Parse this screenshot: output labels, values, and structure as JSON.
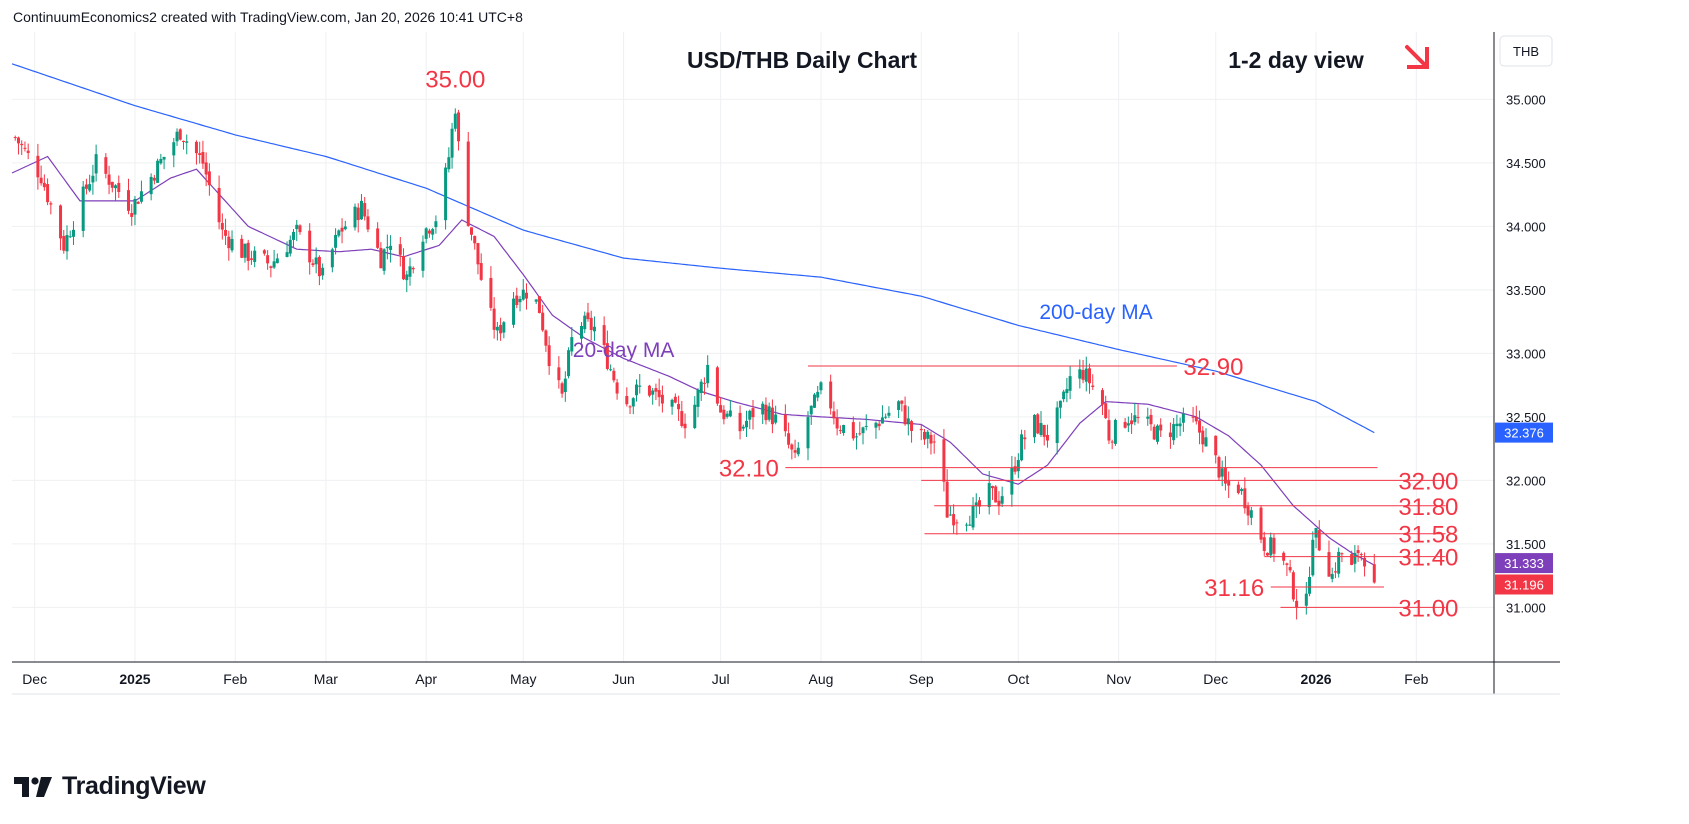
{
  "header": {
    "attribution": "ContinuumEconomics2 created with TradingView.com, Jan 20, 2026 10:41 UTC+8"
  },
  "branding": {
    "name": "TradingView",
    "icon": "tradingview-logo-icon"
  },
  "colors": {
    "up": "#089981",
    "down": "#f23645",
    "ma20": "#7e3fba",
    "ma200": "#2962ff",
    "level": "#f23645",
    "grid": "#eef0f3",
    "text": "#131722",
    "price_tag_ma200": "#2962ff",
    "price_tag_ma20": "#7e3fba",
    "price_tag_last": "#f23645"
  },
  "chart_data": {
    "type": "candlestick",
    "title": "USD/THB Daily Chart",
    "subtitle": "1-2 day view",
    "view_direction_icon": "arrow-down-right-icon",
    "currency": "THB",
    "ylim": [
      30.57,
      35.53
    ],
    "y_ticks": [
      "35.000",
      "34.500",
      "34.000",
      "33.500",
      "33.000",
      "32.500",
      "32.000",
      "31.500",
      "31.000"
    ],
    "x_ticks": [
      {
        "label": "Dec",
        "date": "2024-12-01"
      },
      {
        "label": "2025",
        "date": "2025-01-01"
      },
      {
        "label": "Feb",
        "date": "2025-02-01"
      },
      {
        "label": "Mar",
        "date": "2025-03-01"
      },
      {
        "label": "Apr",
        "date": "2025-04-01"
      },
      {
        "label": "May",
        "date": "2025-05-01"
      },
      {
        "label": "Jun",
        "date": "2025-06-01"
      },
      {
        "label": "Jul",
        "date": "2025-07-01"
      },
      {
        "label": "Aug",
        "date": "2025-08-01"
      },
      {
        "label": "Sep",
        "date": "2025-09-01"
      },
      {
        "label": "Oct",
        "date": "2025-10-01"
      },
      {
        "label": "Nov",
        "date": "2025-11-01"
      },
      {
        "label": "Dec",
        "date": "2025-12-01"
      },
      {
        "label": "2026",
        "date": "2026-01-01"
      },
      {
        "label": "Feb",
        "date": "2026-02-01"
      }
    ],
    "xlim": [
      "2024-11-24",
      "2026-02-25"
    ],
    "path_key_points": [
      {
        "date": "2024-11-25",
        "close": 34.7
      },
      {
        "date": "2024-12-03",
        "close": 34.4
      },
      {
        "date": "2024-12-10",
        "close": 33.85
      },
      {
        "date": "2024-12-20",
        "close": 34.5
      },
      {
        "date": "2024-12-31",
        "close": 34.15
      },
      {
        "date": "2025-01-10",
        "close": 34.55
      },
      {
        "date": "2025-01-15",
        "close": 34.75
      },
      {
        "date": "2025-01-22",
        "close": 34.5
      },
      {
        "date": "2025-01-28",
        "close": 33.95
      },
      {
        "date": "2025-02-03",
        "close": 33.8
      },
      {
        "date": "2025-02-12",
        "close": 33.7
      },
      {
        "date": "2025-02-20",
        "close": 33.95
      },
      {
        "date": "2025-02-28",
        "close": 33.6
      },
      {
        "date": "2025-03-05",
        "close": 33.95
      },
      {
        "date": "2025-03-12",
        "close": 34.15
      },
      {
        "date": "2025-03-18",
        "close": 33.75
      },
      {
        "date": "2025-03-21",
        "close": 33.9
      },
      {
        "date": "2025-03-26",
        "close": 33.6
      },
      {
        "date": "2025-03-31",
        "close": 33.95
      },
      {
        "date": "2025-04-05",
        "close": 34.1
      },
      {
        "date": "2025-04-08",
        "close": 34.55
      },
      {
        "date": "2025-04-10",
        "close": 34.95
      },
      {
        "date": "2025-04-12",
        "close": 34.3
      },
      {
        "date": "2025-04-15",
        "close": 33.95
      },
      {
        "date": "2025-04-20",
        "close": 33.35
      },
      {
        "date": "2025-04-23",
        "close": 33.15
      },
      {
        "date": "2025-04-28",
        "close": 33.45
      },
      {
        "date": "2025-05-03",
        "close": 33.5
      },
      {
        "date": "2025-05-06",
        "close": 33.35
      },
      {
        "date": "2025-05-10",
        "close": 32.85
      },
      {
        "date": "2025-05-13",
        "close": 32.65
      },
      {
        "date": "2025-05-17",
        "close": 33.25
      },
      {
        "date": "2025-05-23",
        "close": 33.2
      },
      {
        "date": "2025-05-27",
        "close": 32.95
      },
      {
        "date": "2025-06-01",
        "close": 32.6
      },
      {
        "date": "2025-06-07",
        "close": 32.75
      },
      {
        "date": "2025-06-14",
        "close": 32.6
      },
      {
        "date": "2025-06-21",
        "close": 32.45
      },
      {
        "date": "2025-06-27",
        "close": 32.9
      },
      {
        "date": "2025-07-01",
        "close": 32.55
      },
      {
        "date": "2025-07-07",
        "close": 32.4
      },
      {
        "date": "2025-07-13",
        "close": 32.6
      },
      {
        "date": "2025-07-19",
        "close": 32.45
      },
      {
        "date": "2025-07-24",
        "close": 32.15
      },
      {
        "date": "2025-07-28",
        "close": 32.5
      },
      {
        "date": "2025-08-02",
        "close": 32.75
      },
      {
        "date": "2025-08-06",
        "close": 32.45
      },
      {
        "date": "2025-08-12",
        "close": 32.35
      },
      {
        "date": "2025-08-18",
        "close": 32.45
      },
      {
        "date": "2025-08-25",
        "close": 32.6
      },
      {
        "date": "2025-08-30",
        "close": 32.35
      },
      {
        "date": "2025-09-06",
        "close": 32.3
      },
      {
        "date": "2025-09-09",
        "close": 31.75
      },
      {
        "date": "2025-09-13",
        "close": 31.7
      },
      {
        "date": "2025-09-18",
        "close": 31.75
      },
      {
        "date": "2025-09-22",
        "close": 31.9
      },
      {
        "date": "2025-09-25",
        "close": 31.85
      },
      {
        "date": "2025-09-29",
        "close": 32.05
      },
      {
        "date": "2025-10-02",
        "close": 32.3
      },
      {
        "date": "2025-10-06",
        "close": 32.45
      },
      {
        "date": "2025-10-10",
        "close": 32.35
      },
      {
        "date": "2025-10-14",
        "close": 32.55
      },
      {
        "date": "2025-10-17",
        "close": 32.8
      },
      {
        "date": "2025-10-21",
        "close": 32.85
      },
      {
        "date": "2025-10-23",
        "close": 32.78
      },
      {
        "date": "2025-10-27",
        "close": 32.6
      },
      {
        "date": "2025-10-29",
        "close": 32.35
      },
      {
        "date": "2025-11-04",
        "close": 32.5
      },
      {
        "date": "2025-11-09",
        "close": 32.45
      },
      {
        "date": "2025-11-14",
        "close": 32.35
      },
      {
        "date": "2025-11-20",
        "close": 32.45
      },
      {
        "date": "2025-11-24",
        "close": 32.45
      },
      {
        "date": "2025-11-27",
        "close": 32.35
      },
      {
        "date": "2025-12-01",
        "close": 32.15
      },
      {
        "date": "2025-12-04",
        "close": 31.95
      },
      {
        "date": "2025-12-08",
        "close": 31.95
      },
      {
        "date": "2025-12-12",
        "close": 31.75
      },
      {
        "date": "2025-12-16",
        "close": 31.5
      },
      {
        "date": "2025-12-20",
        "close": 31.45
      },
      {
        "date": "2025-12-23",
        "close": 31.3
      },
      {
        "date": "2025-12-26",
        "close": 31.05
      },
      {
        "date": "2025-12-29",
        "close": 31.03
      },
      {
        "date": "2025-12-31",
        "close": 31.6
      },
      {
        "date": "2026-01-03",
        "close": 31.45
      },
      {
        "date": "2026-01-06",
        "close": 31.25
      },
      {
        "date": "2026-01-08",
        "close": 31.4
      },
      {
        "date": "2026-01-10",
        "close": 31.45
      },
      {
        "date": "2026-01-12",
        "close": 31.3
      },
      {
        "date": "2026-01-14",
        "close": 31.45
      },
      {
        "date": "2026-01-16",
        "close": 31.4
      },
      {
        "date": "2026-01-19",
        "close": 31.196
      }
    ],
    "ma20_key_points": [
      {
        "date": "2024-11-24",
        "value": 34.42
      },
      {
        "date": "2024-12-05",
        "value": 34.55
      },
      {
        "date": "2024-12-15",
        "value": 34.2
      },
      {
        "date": "2025-01-01",
        "value": 34.2
      },
      {
        "date": "2025-01-12",
        "value": 34.38
      },
      {
        "date": "2025-01-20",
        "value": 34.45
      },
      {
        "date": "2025-02-05",
        "value": 34.0
      },
      {
        "date": "2025-02-20",
        "value": 33.82
      },
      {
        "date": "2025-03-05",
        "value": 33.8
      },
      {
        "date": "2025-03-15",
        "value": 33.82
      },
      {
        "date": "2025-03-25",
        "value": 33.76
      },
      {
        "date": "2025-04-05",
        "value": 33.85
      },
      {
        "date": "2025-04-12",
        "value": 34.05
      },
      {
        "date": "2025-04-22",
        "value": 33.92
      },
      {
        "date": "2025-05-01",
        "value": 33.62
      },
      {
        "date": "2025-05-10",
        "value": 33.3
      },
      {
        "date": "2025-05-20",
        "value": 33.12
      },
      {
        "date": "2025-06-01",
        "value": 32.96
      },
      {
        "date": "2025-06-15",
        "value": 32.82
      },
      {
        "date": "2025-06-25",
        "value": 32.7
      },
      {
        "date": "2025-07-05",
        "value": 32.62
      },
      {
        "date": "2025-07-20",
        "value": 32.52
      },
      {
        "date": "2025-08-01",
        "value": 32.5
      },
      {
        "date": "2025-08-15",
        "value": 32.48
      },
      {
        "date": "2025-09-01",
        "value": 32.44
      },
      {
        "date": "2025-09-10",
        "value": 32.3
      },
      {
        "date": "2025-09-20",
        "value": 32.05
      },
      {
        "date": "2025-10-01",
        "value": 31.97
      },
      {
        "date": "2025-10-10",
        "value": 32.12
      },
      {
        "date": "2025-10-20",
        "value": 32.45
      },
      {
        "date": "2025-10-28",
        "value": 32.62
      },
      {
        "date": "2025-11-10",
        "value": 32.6
      },
      {
        "date": "2025-11-25",
        "value": 32.5
      },
      {
        "date": "2025-12-05",
        "value": 32.35
      },
      {
        "date": "2025-12-15",
        "value": 32.12
      },
      {
        "date": "2025-12-25",
        "value": 31.8
      },
      {
        "date": "2026-01-05",
        "value": 31.55
      },
      {
        "date": "2026-01-12",
        "value": 31.43
      },
      {
        "date": "2026-01-19",
        "value": 31.333
      }
    ],
    "ma200_key_points": [
      {
        "date": "2024-11-24",
        "value": 35.28
      },
      {
        "date": "2025-01-01",
        "value": 34.95
      },
      {
        "date": "2025-02-01",
        "value": 34.72
      },
      {
        "date": "2025-03-01",
        "value": 34.55
      },
      {
        "date": "2025-04-01",
        "value": 34.3
      },
      {
        "date": "2025-05-01",
        "value": 33.97
      },
      {
        "date": "2025-06-01",
        "value": 33.75
      },
      {
        "date": "2025-07-01",
        "value": 33.67
      },
      {
        "date": "2025-08-01",
        "value": 33.6
      },
      {
        "date": "2025-09-01",
        "value": 33.45
      },
      {
        "date": "2025-10-01",
        "value": 33.22
      },
      {
        "date": "2025-11-01",
        "value": 33.03
      },
      {
        "date": "2025-12-01",
        "value": 32.86
      },
      {
        "date": "2026-01-01",
        "value": 32.62
      },
      {
        "date": "2026-01-19",
        "value": 32.376
      }
    ],
    "series_labels": [
      {
        "name": "20-day MA",
        "date": "2025-06-01",
        "value": 32.97
      },
      {
        "name": "200-day MA",
        "date": "2025-10-25",
        "value": 33.27
      }
    ],
    "peak_label": {
      "text": "35.00",
      "date": "2025-04-10",
      "value": 35.0
    },
    "levels": [
      {
        "value": 32.9,
        "label": "32.90",
        "from": "2025-07-28",
        "to": "2025-11-19"
      },
      {
        "value": 32.1,
        "label": "32.10",
        "from": "2025-07-21",
        "to": "2026-01-20"
      },
      {
        "value": 32.0,
        "label": "32.00",
        "from": "2025-09-01",
        "to": "2026-02-10"
      },
      {
        "value": 31.8,
        "label": "31.80",
        "from": "2025-09-05",
        "to": "2026-02-10"
      },
      {
        "value": 31.58,
        "label": "31.58",
        "from": "2025-09-02",
        "to": "2026-02-10"
      },
      {
        "value": 31.4,
        "label": "31.40",
        "from": "2025-12-16",
        "to": "2026-02-10"
      },
      {
        "value": 31.16,
        "label": "31.16",
        "from": "2025-12-18",
        "to": "2026-01-22"
      },
      {
        "value": 31.0,
        "label": "31.00",
        "from": "2025-12-21",
        "to": "2026-02-10"
      }
    ],
    "price_tags": [
      {
        "value": 32.376,
        "label": "32.376",
        "color_key": "price_tag_ma200"
      },
      {
        "value": 31.333,
        "label": "31.333",
        "color_key": "price_tag_ma20"
      },
      {
        "value": 31.196,
        "label": "31.196",
        "color_key": "price_tag_last"
      }
    ]
  }
}
